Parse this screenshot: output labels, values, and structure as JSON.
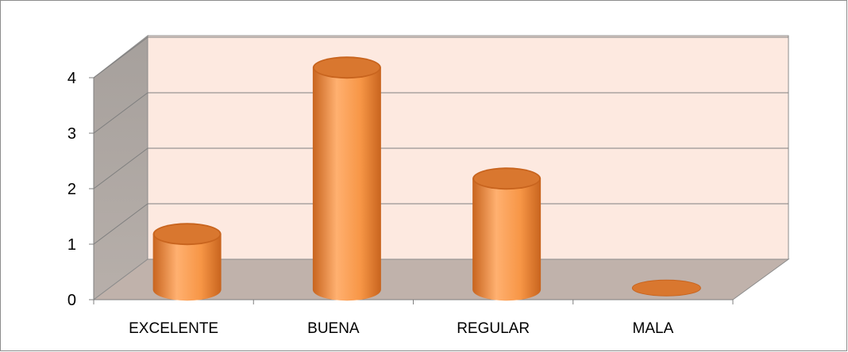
{
  "chart_data": {
    "type": "bar",
    "style": "3d-cylinder",
    "title": "",
    "xlabel": "",
    "ylabel": "",
    "categories": [
      "EXCELENTE",
      "BUENA",
      "REGULAR",
      "MALA"
    ],
    "values": [
      1,
      4,
      2,
      0
    ],
    "ylim": [
      0,
      4
    ],
    "yticks": [
      "0",
      "1",
      "2",
      "3",
      "4"
    ],
    "grid": true,
    "legend": "none",
    "colors": {
      "bar": "#f79646",
      "bar_highlight": "#ffb070",
      "bar_shadow": "#c8641e",
      "back_wall": "#fde9e0",
      "side_wall": "#a6a09c",
      "floor": "#c0b2ab",
      "grid": "#7f7f7f"
    }
  }
}
